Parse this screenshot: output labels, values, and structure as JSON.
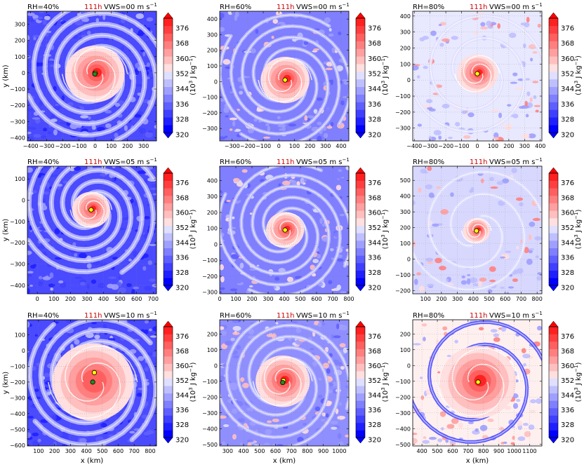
{
  "palette": [
    "#0000ff",
    "#2020ff",
    "#3f3fff",
    "#5f5fff",
    "#7f7fff",
    "#9f9fff",
    "#bfbfff",
    "#dfdfff",
    "#ffdfdf",
    "#ffbfbf",
    "#ff9f9f",
    "#ff7f7f",
    "#ff5f5f",
    "#ff3f3f",
    "#ff2020",
    "#ff0000"
  ],
  "chart_data": [
    {
      "type": "heatmap",
      "panel": 1,
      "rh_label": "RH=40%",
      "time_label": "111h",
      "vws_label": "VWS=00 m s",
      "vws_exp": "−1",
      "xlim": [
        -420,
        380
      ],
      "ylim": [
        -420,
        380
      ],
      "xticks": [
        {
          "v": -400,
          "t": "−400"
        },
        {
          "v": -300,
          "t": "−300"
        },
        {
          "v": -200,
          "t": "−200"
        },
        {
          "v": -100,
          "t": "−100"
        },
        {
          "v": 0,
          "t": "0"
        },
        {
          "v": 100,
          "t": "100"
        },
        {
          "v": 200,
          "t": "200"
        },
        {
          "v": 300,
          "t": "300"
        }
      ],
      "yticks": [
        {
          "v": 300,
          "t": "300"
        },
        {
          "v": 200,
          "t": "200"
        },
        {
          "v": 100,
          "t": "100"
        },
        {
          "v": 0,
          "t": "0"
        },
        {
          "v": -100,
          "t": "−100"
        },
        {
          "v": -200,
          "t": "−200"
        },
        {
          "v": -300,
          "t": "−300"
        },
        {
          "v": -400,
          "t": "−400"
        }
      ],
      "ylabel": "y (km)",
      "xlabel": "",
      "center": [
        -2,
        -7
      ],
      "cores": [
        {
          "x": 0,
          "y": -1,
          "color": "#ffff00"
        },
        {
          "x": -2,
          "y": -7,
          "color": "#228b22"
        }
      ],
      "bg": "#4a4aff",
      "eye_peak": 376,
      "bands": "strong",
      "env_level": 0.25,
      "eye_radius": 0.22
    },
    {
      "type": "heatmap",
      "panel": 2,
      "rh_label": "RH=60%",
      "time_label": "111h",
      "vws_label": "VWS=00 m s",
      "vws_exp": "−1",
      "xlim": [
        -380,
        450
      ],
      "ylim": [
        -380,
        450
      ],
      "xticks": [
        {
          "v": -300,
          "t": "−300"
        },
        {
          "v": -200,
          "t": "−200"
        },
        {
          "v": -100,
          "t": "−100"
        },
        {
          "v": 0,
          "t": "0"
        },
        {
          "v": 100,
          "t": "100"
        },
        {
          "v": 200,
          "t": "200"
        },
        {
          "v": 300,
          "t": "300"
        },
        {
          "v": 400,
          "t": "400"
        }
      ],
      "yticks": [
        {
          "v": 400,
          "t": "400"
        },
        {
          "v": 300,
          "t": "300"
        },
        {
          "v": 200,
          "t": "200"
        },
        {
          "v": 100,
          "t": "100"
        },
        {
          "v": 0,
          "t": "0"
        },
        {
          "v": -100,
          "t": "−100"
        },
        {
          "v": -200,
          "t": "−200"
        },
        {
          "v": -300,
          "t": "−300"
        }
      ],
      "ylabel": "",
      "xlabel": "",
      "center": [
        40,
        10
      ],
      "cores": [
        {
          "x": 40,
          "y": 10,
          "color": "#ffff00"
        }
      ],
      "bg": "#7f7fff",
      "eye_peak": 376,
      "bands": "medium",
      "env_level": 0.35,
      "eye_radius": 0.18
    },
    {
      "type": "heatmap",
      "panel": 3,
      "rh_label": "RH=80%",
      "time_label": "111h",
      "vws_label": "VWS=00 m s",
      "vws_exp": "−1",
      "xlim": [
        -410,
        410
      ],
      "ylim": [
        -380,
        430
      ],
      "xticks": [
        {
          "v": -400,
          "t": "−400"
        },
        {
          "v": -300,
          "t": "−300"
        },
        {
          "v": -200,
          "t": "−200"
        },
        {
          "v": -100,
          "t": "−100"
        },
        {
          "v": 0,
          "t": "0"
        },
        {
          "v": 100,
          "t": "100"
        },
        {
          "v": 200,
          "t": "200"
        },
        {
          "v": 300,
          "t": "300"
        },
        {
          "v": 400,
          "t": "400"
        }
      ],
      "yticks": [
        {
          "v": 400,
          "t": "400"
        },
        {
          "v": 300,
          "t": "300"
        },
        {
          "v": 200,
          "t": "200"
        },
        {
          "v": 100,
          "t": "100"
        },
        {
          "v": 0,
          "t": "0"
        },
        {
          "v": -100,
          "t": "−100"
        },
        {
          "v": -200,
          "t": "−200"
        },
        {
          "v": -300,
          "t": "−300"
        }
      ],
      "ylabel": "",
      "xlabel": "",
      "center": [
        0,
        40
      ],
      "cores": [
        {
          "x": 0,
          "y": 40,
          "color": "#ffff00"
        }
      ],
      "bg": "#e8e8ff",
      "eye_peak": 376,
      "bands": "weak",
      "env_level": 0.5,
      "eye_radius": 0.15
    },
    {
      "type": "heatmap",
      "panel": 4,
      "rh_label": "RH=40%",
      "time_label": "111h",
      "vws_label": "VWS=05 m s",
      "vws_exp": "−1",
      "xlim": [
        -60,
        720
      ],
      "ylim": [
        -440,
        160
      ],
      "xticks": [
        {
          "v": 0,
          "t": "0"
        },
        {
          "v": 100,
          "t": "100"
        },
        {
          "v": 200,
          "t": "200"
        },
        {
          "v": 300,
          "t": "300"
        },
        {
          "v": 400,
          "t": "400"
        },
        {
          "v": 500,
          "t": "500"
        },
        {
          "v": 600,
          "t": "600"
        },
        {
          "v": 700,
          "t": "700"
        }
      ],
      "yticks": [
        {
          "v": 100,
          "t": "100"
        },
        {
          "v": 0,
          "t": "0"
        },
        {
          "v": -100,
          "t": "−100"
        },
        {
          "v": -200,
          "t": "−200"
        },
        {
          "v": -300,
          "t": "−300"
        },
        {
          "v": -400,
          "t": "−400"
        }
      ],
      "ylabel": "y (km)",
      "xlabel": "",
      "center": [
        325,
        -45
      ],
      "cores": [
        {
          "x": 325,
          "y": -45,
          "color": "#ffff00"
        }
      ],
      "bg": "#4a4aff",
      "eye_peak": 376,
      "bands": "strong",
      "env_level": 0.25,
      "eye_radius": 0.14
    },
    {
      "type": "heatmap",
      "panel": 5,
      "rh_label": "RH=60%",
      "time_label": "111h",
      "vws_label": "VWS=05 m s",
      "vws_exp": "−1",
      "xlim": [
        0,
        800
      ],
      "ylim": [
        -310,
        490
      ],
      "xticks": [
        {
          "v": 0,
          "t": "0"
        },
        {
          "v": 100,
          "t": "100"
        },
        {
          "v": 200,
          "t": "200"
        },
        {
          "v": 300,
          "t": "300"
        },
        {
          "v": 400,
          "t": "400"
        },
        {
          "v": 500,
          "t": "500"
        },
        {
          "v": 600,
          "t": "600"
        },
        {
          "v": 700,
          "t": "700"
        },
        {
          "v": 800,
          "t": "800"
        }
      ],
      "yticks": [
        {
          "v": 400,
          "t": "400"
        },
        {
          "v": 300,
          "t": "300"
        },
        {
          "v": 200,
          "t": "200"
        },
        {
          "v": 100,
          "t": "100"
        },
        {
          "v": 0,
          "t": "0"
        },
        {
          "v": -100,
          "t": "−100"
        },
        {
          "v": -200,
          "t": "−200"
        },
        {
          "v": -300,
          "t": "−300"
        }
      ],
      "ylabel": "",
      "xlabel": "",
      "center": [
        405,
        90
      ],
      "cores": [
        {
          "x": 405,
          "y": 90,
          "color": "#ffff00"
        }
      ],
      "bg": "#7f7fff",
      "eye_peak": 376,
      "bands": "medium",
      "env_level": 0.35,
      "eye_radius": 0.14
    },
    {
      "type": "heatmap",
      "panel": 6,
      "rh_label": "RH=80%",
      "time_label": "111h",
      "vws_label": "VWS=05 m s",
      "vws_exp": "−1",
      "xlim": [
        20,
        830
      ],
      "ylim": [
        -220,
        590
      ],
      "xticks": [
        {
          "v": 100,
          "t": "100"
        },
        {
          "v": 200,
          "t": "200"
        },
        {
          "v": 300,
          "t": "300"
        },
        {
          "v": 400,
          "t": "400"
        },
        {
          "v": 500,
          "t": "500"
        },
        {
          "v": 600,
          "t": "600"
        },
        {
          "v": 700,
          "t": "700"
        },
        {
          "v": 800,
          "t": "800"
        }
      ],
      "yticks": [
        {
          "v": 500,
          "t": "500"
        },
        {
          "v": 400,
          "t": "400"
        },
        {
          "v": 300,
          "t": "300"
        },
        {
          "v": 200,
          "t": "200"
        },
        {
          "v": 100,
          "t": "100"
        },
        {
          "v": 0,
          "t": "0"
        },
        {
          "v": -100,
          "t": "−100"
        },
        {
          "v": -200,
          "t": "−200"
        }
      ],
      "ylabel": "",
      "xlabel": "",
      "center": [
        420,
        180
      ],
      "cores": [
        {
          "x": 420,
          "y": 180,
          "color": "#ffff00"
        }
      ],
      "bg": "#d8d8ff",
      "eye_peak": 376,
      "bands": "weak",
      "env_level": 0.5,
      "eye_radius": 0.1
    },
    {
      "type": "heatmap",
      "panel": 7,
      "rh_label": "RH=40%",
      "time_label": "111h",
      "vws_label": "VWS=10 m s",
      "vws_exp": "−1",
      "xlim": [
        30,
        840
      ],
      "ylim": [
        -605,
        195
      ],
      "xticks": [
        {
          "v": 100,
          "t": "100"
        },
        {
          "v": 200,
          "t": "200"
        },
        {
          "v": 300,
          "t": "300"
        },
        {
          "v": 400,
          "t": "400"
        },
        {
          "v": 500,
          "t": "500"
        },
        {
          "v": 600,
          "t": "600"
        },
        {
          "v": 700,
          "t": "700"
        },
        {
          "v": 800,
          "t": "800"
        }
      ],
      "yticks": [
        {
          "v": 100,
          "t": "100"
        },
        {
          "v": 0,
          "t": "0"
        },
        {
          "v": -100,
          "t": "−100"
        },
        {
          "v": -200,
          "t": "−200"
        },
        {
          "v": -300,
          "t": "−300"
        },
        {
          "v": -400,
          "t": "−400"
        },
        {
          "v": -500,
          "t": "−500"
        },
        {
          "v": -600,
          "t": "−600"
        }
      ],
      "ylabel": "y (km)",
      "xlabel": "x (km)",
      "center": [
        440,
        -200
      ],
      "cores": [
        {
          "x": 450,
          "y": -140,
          "color": "#ffff00"
        },
        {
          "x": 440,
          "y": -200,
          "color": "#228b22"
        }
      ],
      "bg": "#4a4aff",
      "eye_peak": 368,
      "bands": "strong",
      "env_level": 0.25,
      "eye_radius": 0.3
    },
    {
      "type": "heatmap",
      "panel": 8,
      "rh_label": "RH=60%",
      "time_label": "111h",
      "vws_label": "VWS=10 m s",
      "vws_exp": "−1",
      "xlim": [
        250,
        1060
      ],
      "ylim": [
        -510,
        290
      ],
      "xticks": [
        {
          "v": 300,
          "t": "300"
        },
        {
          "v": 400,
          "t": "400"
        },
        {
          "v": 500,
          "t": "500"
        },
        {
          "v": 600,
          "t": "600"
        },
        {
          "v": 700,
          "t": "700"
        },
        {
          "v": 800,
          "t": "800"
        },
        {
          "v": 900,
          "t": "900"
        },
        {
          "v": 1000,
          "t": "1000"
        }
      ],
      "yticks": [
        {
          "v": 200,
          "t": "200"
        },
        {
          "v": 100,
          "t": "100"
        },
        {
          "v": 0,
          "t": "0"
        },
        {
          "v": -100,
          "t": "−100"
        },
        {
          "v": -200,
          "t": "−200"
        },
        {
          "v": -300,
          "t": "−300"
        },
        {
          "v": -400,
          "t": "−400"
        },
        {
          "v": -500,
          "t": "−500"
        }
      ],
      "ylabel": "",
      "xlabel": "x (km)",
      "center": [
        645,
        -100
      ],
      "cores": [
        {
          "x": 650,
          "y": -95,
          "color": "#ffff00"
        },
        {
          "x": 645,
          "y": -108,
          "color": "#228b22"
        }
      ],
      "bg": "#8f8fff",
      "eye_peak": 376,
      "bands": "medium",
      "env_level": 0.35,
      "eye_radius": 0.2
    },
    {
      "type": "heatmap",
      "panel": 9,
      "rh_label": "RH=80%",
      "time_label": "111h",
      "vws_label": "VWS=10 m s",
      "vws_exp": "−1",
      "xlim": [
        340,
        1180
      ],
      "ylim": [
        -510,
        290
      ],
      "xticks": [
        {
          "v": 400,
          "t": "400"
        },
        {
          "v": 500,
          "t": "500"
        },
        {
          "v": 600,
          "t": "600"
        },
        {
          "v": 700,
          "t": "700"
        },
        {
          "v": 800,
          "t": "800"
        },
        {
          "v": 900,
          "t": "900"
        },
        {
          "v": 1000,
          "t": "1000"
        },
        {
          "v": 1100,
          "t": "1100"
        }
      ],
      "yticks": [
        {
          "v": 200,
          "t": "200"
        },
        {
          "v": 100,
          "t": "100"
        },
        {
          "v": 0,
          "t": "0"
        },
        {
          "v": -100,
          "t": "−100"
        },
        {
          "v": -200,
          "t": "−200"
        },
        {
          "v": -300,
          "t": "−300"
        },
        {
          "v": -400,
          "t": "−400"
        },
        {
          "v": -500,
          "t": "−500"
        }
      ],
      "ylabel": "",
      "xlabel": "x (km)",
      "center": [
        765,
        -105
      ],
      "cores": [
        {
          "x": 765,
          "y": -105,
          "color": "#ffff00"
        }
      ],
      "bg": "#fff0f0",
      "eye_peak": 376,
      "bands": "weak",
      "env_level": 0.55,
      "eye_radius": 0.28
    }
  ],
  "colorbar": {
    "levels": [
      320,
      324,
      328,
      332,
      336,
      340,
      344,
      348,
      352,
      356,
      360,
      364,
      368,
      372,
      376,
      380
    ],
    "tick_labels": [
      "376",
      "368",
      "360",
      "352",
      "344",
      "336",
      "328",
      "320"
    ],
    "tick_values": [
      376,
      368,
      360,
      352,
      344,
      336,
      328,
      320
    ],
    "label_base": "(10",
    "label_exp": "3",
    "label_unit": " J kg",
    "label_unit_exp": "−1",
    "label_close": ")"
  }
}
